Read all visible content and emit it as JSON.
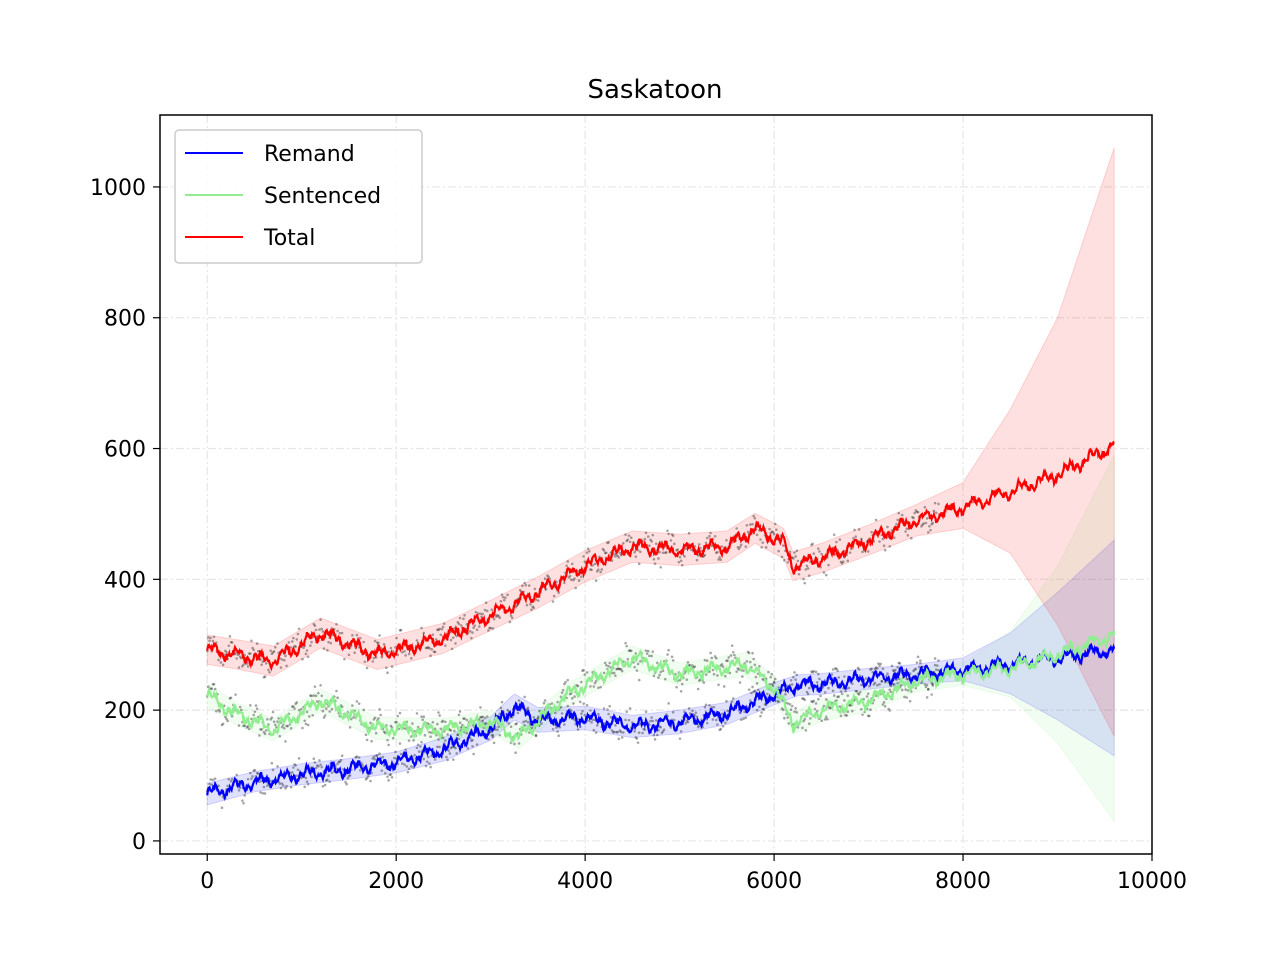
{
  "chart_data": {
    "type": "line",
    "title": "Saskatoon",
    "xlabel": "",
    "ylabel": "",
    "xlim": [
      -500,
      10000
    ],
    "ylim": [
      -20,
      1110
    ],
    "x_ticks": [
      0,
      2000,
      4000,
      6000,
      8000,
      10000
    ],
    "x_tick_labels": [
      "0",
      "2000",
      "4000",
      "6000",
      "8000",
      "10000"
    ],
    "y_ticks": [
      0,
      200,
      400,
      600,
      800,
      1000
    ],
    "y_tick_labels": [
      "0",
      "200",
      "400",
      "600",
      "800",
      "1000"
    ],
    "grid": true,
    "legend_position": "top-left",
    "observed_data_until": 7750,
    "series": [
      {
        "name": "Remand",
        "color": "#0000ff",
        "x": [
          0,
          500,
          1000,
          1500,
          2000,
          2500,
          3000,
          3250,
          3500,
          4000,
          4500,
          5000,
          5500,
          6000,
          6250,
          6500,
          7000,
          7500,
          8000,
          8500,
          9000,
          9600
        ],
        "values": [
          72,
          90,
          102,
          110,
          120,
          140,
          172,
          205,
          185,
          188,
          175,
          182,
          195,
          225,
          238,
          240,
          248,
          255,
          262,
          270,
          280,
          292
        ],
        "band_lower": [
          55,
          75,
          86,
          94,
          104,
          122,
          154,
          185,
          166,
          170,
          158,
          164,
          178,
          208,
          222,
          224,
          232,
          240,
          245,
          225,
          185,
          130
        ],
        "band_upper": [
          88,
          106,
          118,
          126,
          136,
          158,
          190,
          225,
          204,
          206,
          192,
          200,
          212,
          242,
          254,
          256,
          264,
          270,
          280,
          318,
          380,
          460
        ]
      },
      {
        "name": "Sentenced",
        "color": "#90ee90",
        "x": [
          0,
          300,
          700,
          1200,
          1800,
          2500,
          3000,
          3300,
          3800,
          4500,
          5000,
          5700,
          6000,
          6200,
          6500,
          7000,
          7500,
          8000,
          8500,
          9000,
          9600
        ],
        "values": [
          222,
          195,
          170,
          215,
          172,
          170,
          182,
          158,
          222,
          280,
          255,
          270,
          235,
          180,
          200,
          215,
          245,
          255,
          265,
          285,
          315
        ],
        "band_lower": [
          205,
          178,
          153,
          198,
          155,
          153,
          165,
          141,
          205,
          262,
          238,
          252,
          218,
          163,
          183,
          198,
          228,
          238,
          220,
          150,
          30
        ],
        "band_upper": [
          240,
          212,
          187,
          232,
          189,
          187,
          199,
          175,
          239,
          298,
          272,
          288,
          252,
          197,
          217,
          232,
          262,
          272,
          320,
          420,
          590
        ]
      },
      {
        "name": "Total",
        "color": "#ff0000",
        "x": [
          0,
          300,
          700,
          1200,
          1800,
          2500,
          3000,
          3500,
          4000,
          4500,
          5000,
          5500,
          5800,
          6100,
          6200,
          6500,
          7000,
          7500,
          8000,
          8500,
          9000,
          9600
        ],
        "values": [
          292,
          285,
          275,
          318,
          285,
          310,
          345,
          380,
          420,
          450,
          445,
          450,
          478,
          455,
          420,
          432,
          460,
          490,
          510,
          535,
          560,
          605
        ],
        "band_lower": [
          270,
          263,
          252,
          295,
          262,
          287,
          322,
          356,
          396,
          426,
          421,
          426,
          455,
          432,
          398,
          410,
          437,
          466,
          478,
          440,
          330,
          160
        ],
        "band_upper": [
          315,
          308,
          298,
          341,
          308,
          333,
          368,
          404,
          444,
          474,
          469,
          474,
          501,
          478,
          442,
          455,
          483,
          514,
          548,
          660,
          800,
          1060
        ]
      }
    ]
  }
}
